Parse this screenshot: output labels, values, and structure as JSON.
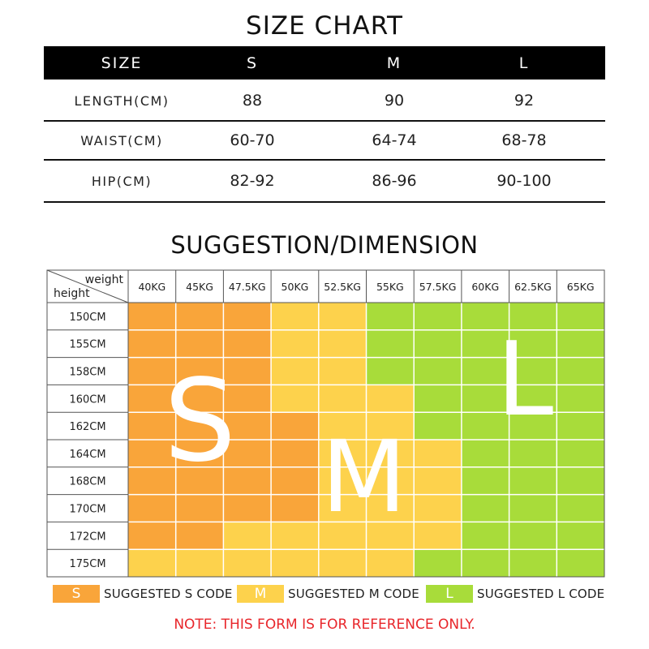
{
  "size_chart": {
    "title": "SIZE CHART",
    "header": [
      "SIZE",
      "S",
      "M",
      "L"
    ],
    "rows": [
      {
        "label": "LENGTH(CM)",
        "values": [
          "88",
          "90",
          "92"
        ]
      },
      {
        "label": "WAIST(CM)",
        "values": [
          "60-70",
          "64-74",
          "68-78"
        ]
      },
      {
        "label": "HIP(CM)",
        "values": [
          "82-92",
          "86-96",
          "90-100"
        ]
      }
    ]
  },
  "suggestion": {
    "title": "SUGGESTION/DIMENSION",
    "corner_weight": "weight",
    "corner_height": "height",
    "weights": [
      "40KG",
      "45KG",
      "47.5KG",
      "50KG",
      "52.5KG",
      "55KG",
      "57.5KG",
      "60KG",
      "62.5KG",
      "65KG"
    ],
    "heights": [
      "150CM",
      "155CM",
      "158CM",
      "160CM",
      "162CM",
      "164CM",
      "168CM",
      "170CM",
      "172CM",
      "175CM"
    ],
    "grid": [
      [
        "S",
        "S",
        "S",
        "M",
        "M",
        "L",
        "L",
        "L",
        "L",
        "L"
      ],
      [
        "S",
        "S",
        "S",
        "M",
        "M",
        "L",
        "L",
        "L",
        "L",
        "L"
      ],
      [
        "S",
        "S",
        "S",
        "M",
        "M",
        "L",
        "L",
        "L",
        "L",
        "L"
      ],
      [
        "S",
        "S",
        "S",
        "M",
        "M",
        "M",
        "L",
        "L",
        "L",
        "L"
      ],
      [
        "S",
        "S",
        "S",
        "S",
        "M",
        "M",
        "L",
        "L",
        "L",
        "L"
      ],
      [
        "S",
        "S",
        "S",
        "S",
        "M",
        "M",
        "M",
        "L",
        "L",
        "L"
      ],
      [
        "S",
        "S",
        "S",
        "S",
        "M",
        "M",
        "M",
        "L",
        "L",
        "L"
      ],
      [
        "S",
        "S",
        "S",
        "S",
        "M",
        "M",
        "M",
        "L",
        "L",
        "L"
      ],
      [
        "S",
        "S",
        "M",
        "M",
        "M",
        "M",
        "M",
        "L",
        "L",
        "L"
      ],
      [
        "M",
        "M",
        "M",
        "M",
        "M",
        "M",
        "L",
        "L",
        "L",
        "L"
      ]
    ],
    "big_letters": {
      "s": "S",
      "m": "M",
      "l": "L"
    },
    "colors": {
      "S": "#f9a53a",
      "S_dark": "#f59a34",
      "M": "#fdd24c",
      "L": "#a8dc3a",
      "grid_line": "#ffffff",
      "border": "#555555"
    }
  },
  "legend": [
    {
      "code": "S",
      "text": "SUGGESTED S CODE",
      "color": "#f9a53a"
    },
    {
      "code": "M",
      "text": "SUGGESTED M CODE",
      "color": "#fdd24c"
    },
    {
      "code": "L",
      "text": "SUGGESTED L CODE",
      "color": "#a8dc3a"
    }
  ],
  "note": "NOTE: THIS FORM IS FOR REFERENCE ONLY."
}
